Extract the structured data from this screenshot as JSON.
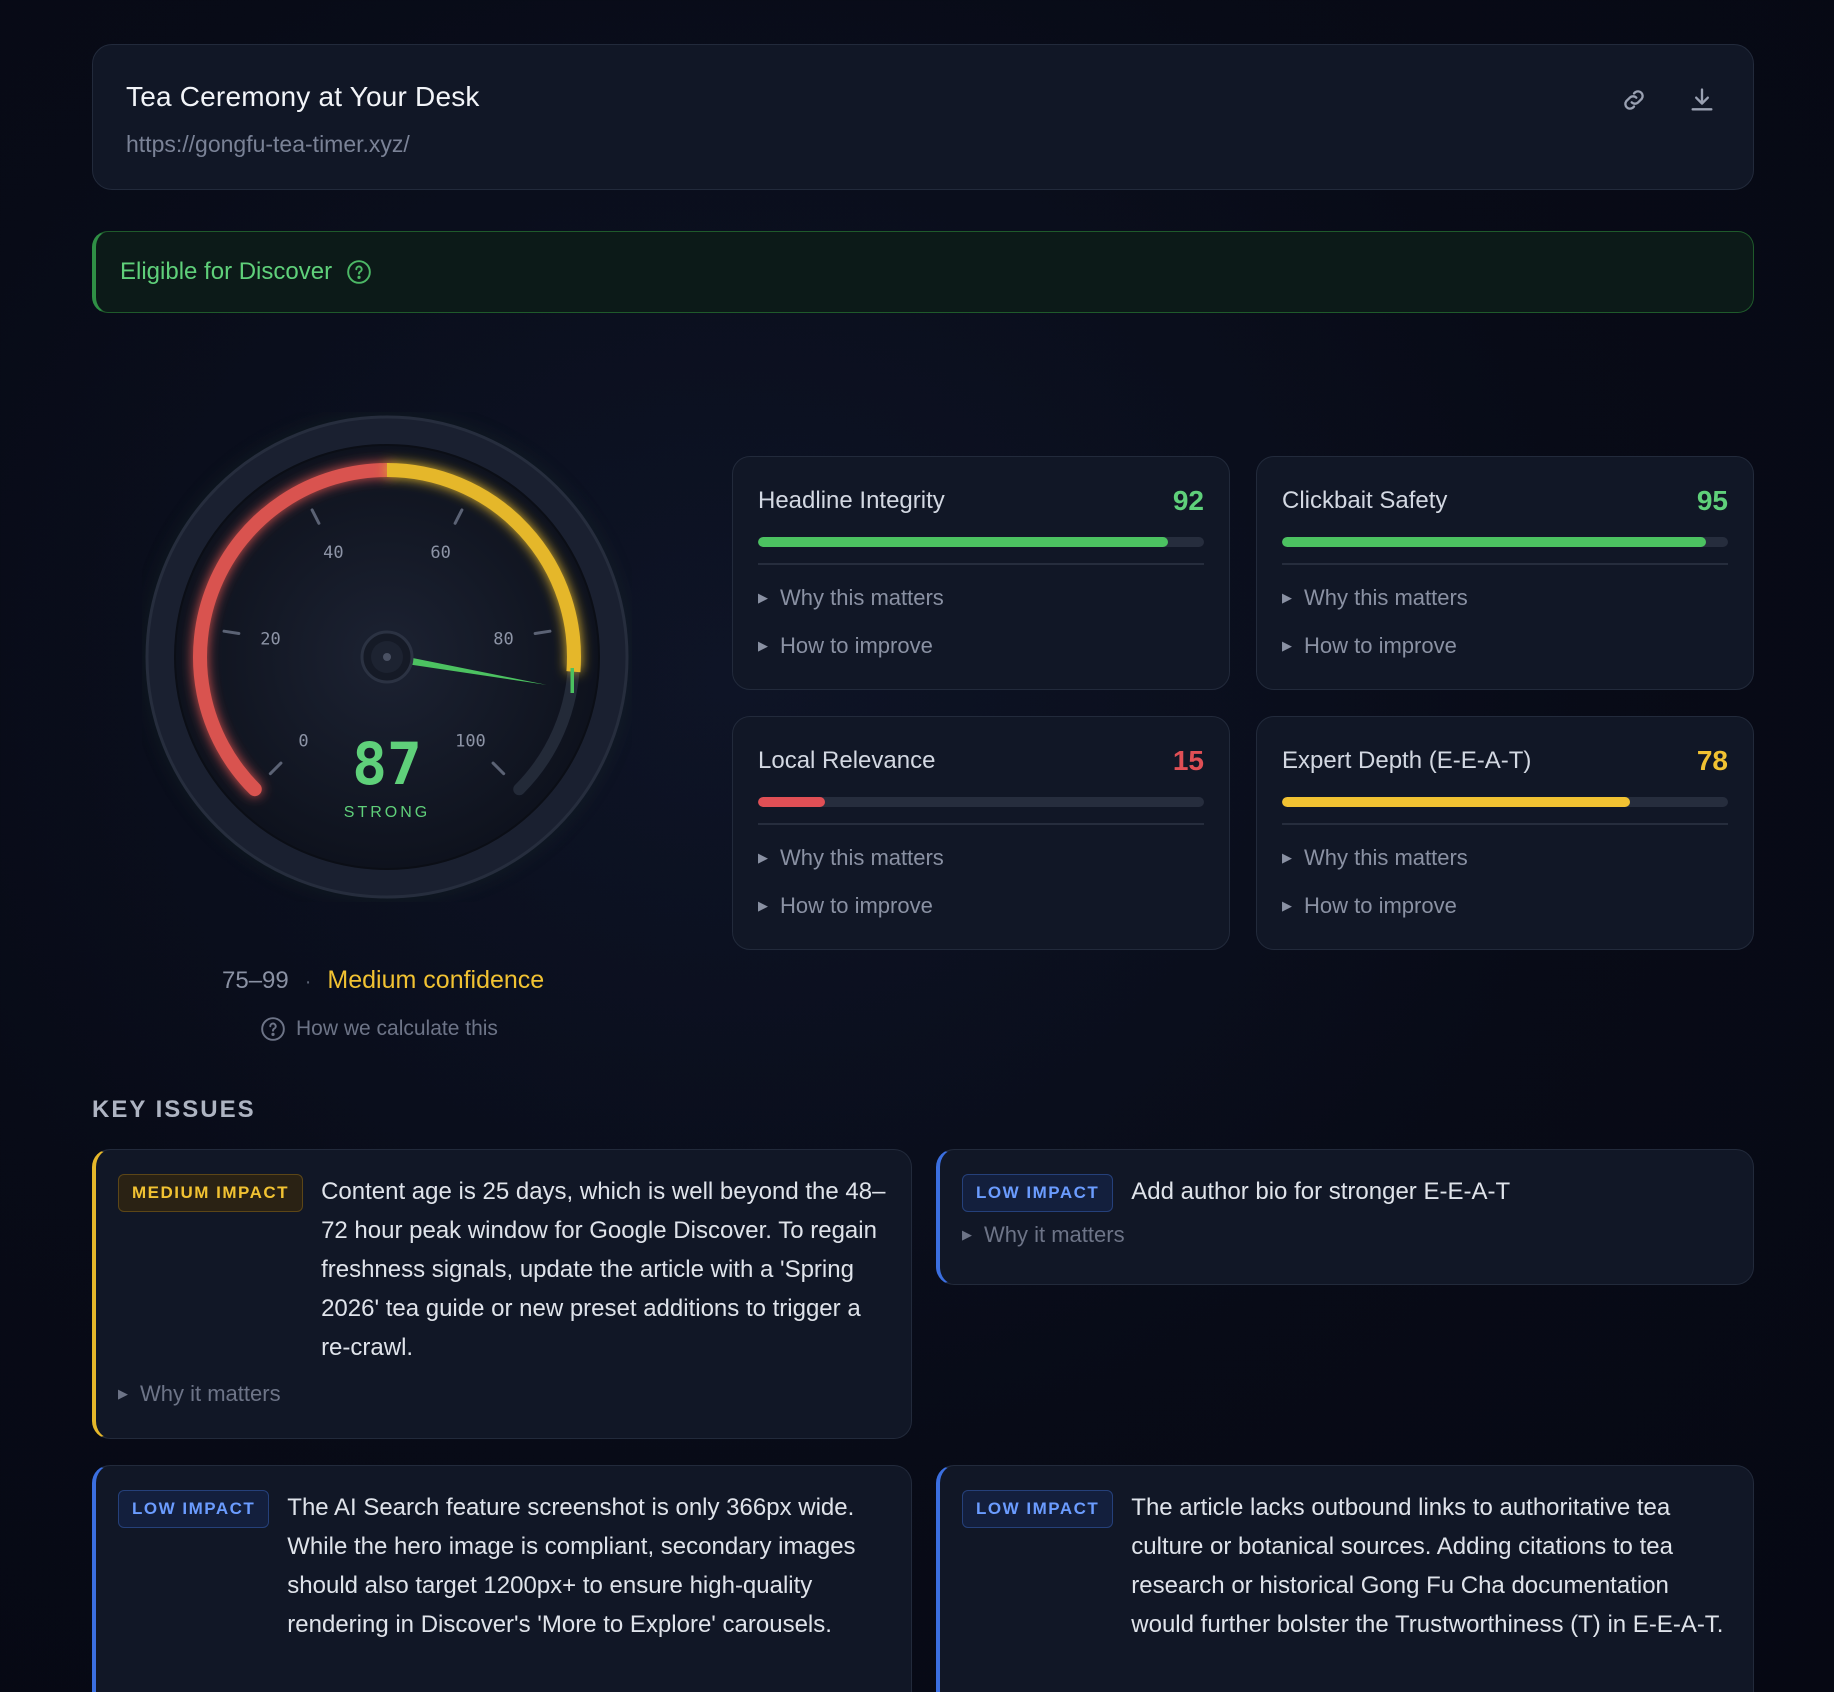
{
  "header": {
    "title": "Tea Ceremony at Your Desk",
    "url": "https://gongfu-tea-timer.xyz/",
    "actions": {
      "link_icon": "link-icon",
      "download_icon": "download-icon"
    }
  },
  "eligibility": {
    "label": "Eligible for Discover",
    "help_icon": "help-circle-icon",
    "color": "#5fd07a"
  },
  "gauge": {
    "score": "87",
    "score_value": 87,
    "rating": "STRONG",
    "ticks": [
      "0",
      "20",
      "40",
      "60",
      "80",
      "100"
    ],
    "range": "75–99",
    "separator": "·",
    "confidence": "Medium confidence",
    "calc_link": "How we calculate this",
    "colors": {
      "low": "#d9534f",
      "mid": "#e5b72a",
      "high": "#4cc261"
    }
  },
  "metrics": [
    {
      "name": "Headline Integrity",
      "score": "92",
      "value": 92,
      "color": "#4cc261",
      "why": "Why this matters",
      "how": "How to improve"
    },
    {
      "name": "Clickbait Safety",
      "score": "95",
      "value": 95,
      "color": "#4cc261",
      "why": "Why this matters",
      "how": "How to improve"
    },
    {
      "name": "Local Relevance",
      "score": "15",
      "value": 15,
      "color": "#e04f55",
      "why": "Why this matters",
      "how": "How to improve"
    },
    {
      "name": "Expert Depth (E-E-A-T)",
      "score": "78",
      "value": 78,
      "color": "#f1c232",
      "why": "Why this matters",
      "how": "How to improve"
    }
  ],
  "key_issues": {
    "title": "KEY ISSUES",
    "items": [
      {
        "impact": "MEDIUM IMPACT",
        "text": "Content age is 25 days, which is well beyond the 48–72 hour peak window for Google Discover. To regain freshness signals, update the article with a 'Spring 2026' tea guide or new preset additions to trigger a re-crawl.",
        "why": "Why it matters"
      },
      {
        "impact": "LOW IMPACT",
        "text": "Add author bio for stronger E-E-A-T",
        "why": "Why it matters"
      },
      {
        "impact": "LOW IMPACT",
        "text": "The AI Search feature screenshot is only 366px wide. While the hero image is compliant, secondary images should also target 1200px+ to ensure high-quality rendering in Discover's 'More to Explore' carousels."
      },
      {
        "impact": "LOW IMPACT",
        "text": "The article lacks outbound links to authoritative tea culture or botanical sources. Adding citations to tea research or historical Gong Fu Cha documentation would further bolster the Trustworthiness (T) in E-E-A-T."
      }
    ]
  }
}
